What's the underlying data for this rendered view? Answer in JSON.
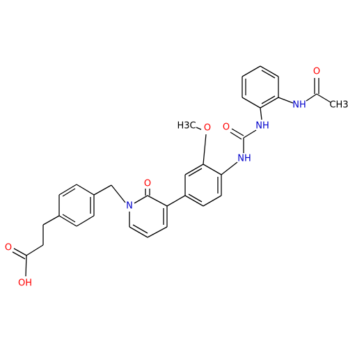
{
  "atoms": [
    {
      "label": "O"
    },
    {
      "label": "NH"
    },
    {
      "label": "CH3"
    },
    {
      "label": "NH"
    },
    {
      "label": "O"
    },
    {
      "label": "H3C"
    },
    {
      "label": "O"
    },
    {
      "label": "NH"
    },
    {
      "label": "O"
    },
    {
      "label": "N"
    },
    {
      "label": "O"
    },
    {
      "label": "OH"
    }
  ]
}
